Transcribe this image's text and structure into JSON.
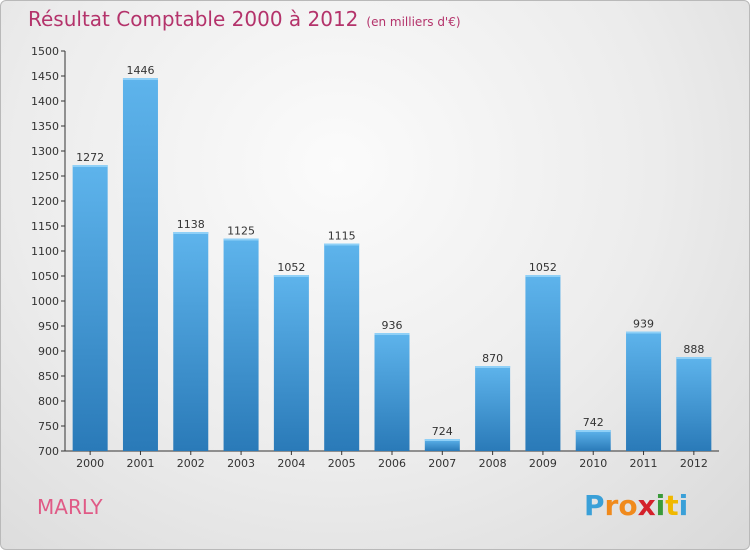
{
  "header": {
    "title": "Résultat Comptable 2000 à 2012",
    "subtitle": "(en milliers d'€)"
  },
  "footer": {
    "city": "MARLY",
    "logo_letters": [
      "P",
      "r",
      "o",
      "x",
      "i",
      "t",
      "i"
    ],
    "logo_colors": [
      "#3aa0d8",
      "#f08a1c",
      "#f08a1c",
      "#d4202a",
      "#3a9a3a",
      "#f0b800",
      "#3aa0d8"
    ]
  },
  "colors": {
    "bar_light": "#5eb4ec",
    "bar_dark": "#2a7ab8",
    "title": "#b4336b"
  },
  "chart_data": {
    "type": "bar",
    "title": "Résultat Comptable 2000 à 2012",
    "subtitle": "(en milliers d'€)",
    "xlabel": "",
    "ylabel": "",
    "categories": [
      "2000",
      "2001",
      "2002",
      "2003",
      "2004",
      "2005",
      "2006",
      "2007",
      "2008",
      "2009",
      "2010",
      "2011",
      "2012"
    ],
    "values": [
      1272,
      1446,
      1138,
      1125,
      1052,
      1115,
      936,
      724,
      870,
      1052,
      742,
      939,
      888
    ],
    "ylim": [
      700,
      1500
    ],
    "yticks": [
      700,
      750,
      800,
      850,
      900,
      950,
      1000,
      1050,
      1100,
      1150,
      1200,
      1250,
      1300,
      1350,
      1400,
      1450,
      1500
    ],
    "grid": false,
    "legend": "none"
  }
}
